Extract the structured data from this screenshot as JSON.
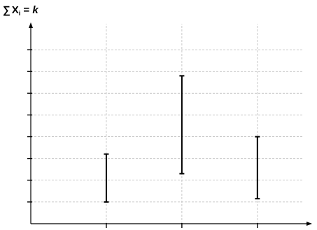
{
  "chart_data": {
    "type": "range-bar",
    "title_parts": {
      "sum_symbol": "∑",
      "variable": "X",
      "subscript": "i",
      "equals": " = ",
      "constant": "k"
    },
    "xlabel": "",
    "ylabel": "",
    "x_ticks": [
      1,
      2,
      3
    ],
    "xlim": [
      0,
      3.65
    ],
    "y_ticks": [
      1,
      2,
      3,
      4,
      5,
      6,
      7,
      8
    ],
    "ylim": [
      0,
      9
    ],
    "grid": true,
    "tick_labels_shown": false,
    "ranges": [
      {
        "x": 1,
        "low": 1.0,
        "high": 3.2
      },
      {
        "x": 2,
        "low": 2.3,
        "high": 6.8
      },
      {
        "x": 3,
        "low": 1.15,
        "high": 4.0
      }
    ],
    "colors": {
      "range": "#000000",
      "grid": "#bbbbbb",
      "axis": "#000000"
    }
  }
}
